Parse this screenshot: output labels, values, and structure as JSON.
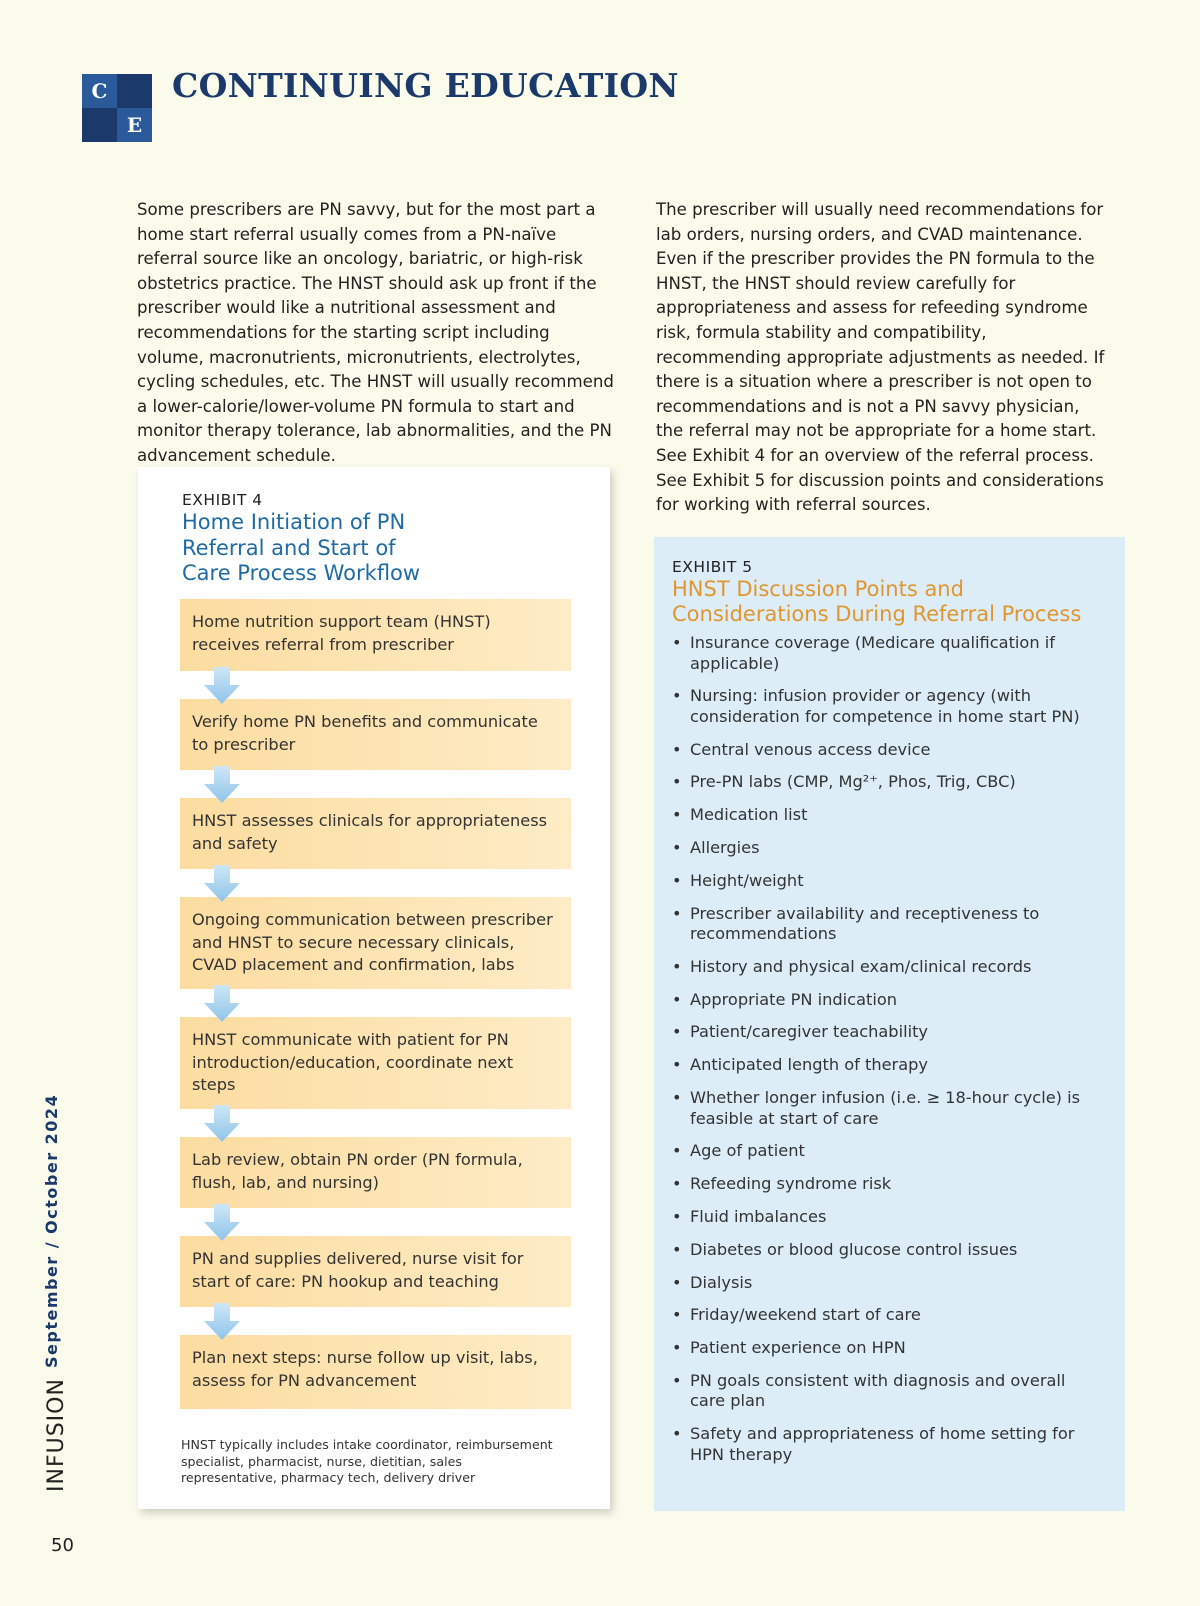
{
  "header": {
    "logo_top": "C",
    "logo_bottom": "E",
    "title": "CONTINUING EDUCATION"
  },
  "left_paragraph": "Some prescribers are PN savvy, but for the most part a home start referral usually comes from a PN-naïve referral source like an oncology, bariatric, or high-risk obstetrics practice. The HNST should ask up front if the prescriber would like a nutritional assessment and recommendations for the starting script including volume, macronutrients, micronutrients, electrolytes, cycling schedules, etc. The HNST will usually recommend a lower-calorie/lower-volume PN formula to start and monitor therapy tolerance, lab abnormalities, and the PN advancement schedule.",
  "right_paragraph": "The prescriber will usually need recommendations for lab orders, nursing orders, and CVAD maintenance. Even if the prescriber provides the PN formula to the HNST, the HNST should review carefully for appropriateness and assess for refeeding syndrome risk, formula stability and compatibility, recommending appropriate adjustments as needed. If there is a situation where a prescriber is not open to recommendations and is not a PN savvy physician, the referral may not be appropriate for a home start. See Exhibit 4 for an overview of the referral process. See Exhibit 5 for discussion points and considerations for working with referral sources.",
  "exhibit4": {
    "label": "EXHIBIT 4",
    "title": "Home Initiation of PN Referral and Start of Care Process Workflow",
    "steps": [
      "Home nutrition support team (HNST) receives  referral from prescriber",
      "Verify home PN benefits and communicate to prescriber",
      "HNST assesses clinicals for appropriateness and safety",
      "Ongoing communication between prescriber and HNST to secure necessary clinicals, CVAD placement and confirmation, labs",
      "HNST communicate with patient for PN introduction/education, coordinate next steps",
      "Lab review, obtain PN order (PN formula, flush, lab, and nursing)",
      "PN and supplies delivered, nurse visit for start of care: PN hookup and teaching",
      "Plan next steps: nurse follow up visit, labs, assess for PN advancement"
    ],
    "footnote": "HNST typically includes intake coordinator, reimbursement specialist, pharmacist, nurse, dietitian, sales representative, pharmacy tech, delivery driver"
  },
  "exhibit5": {
    "label": "EXHIBIT 5",
    "title": "HNST Discussion Points and Considerations During Referral Process",
    "items": [
      "Insurance coverage (Medicare qualification if applicable)",
      "Nursing: infusion provider or agency (with consideration for competence in home start PN)",
      "Central venous access device",
      "Pre-PN labs (CMP, Mg²⁺, Phos, Trig, CBC)",
      "Medication list",
      "Allergies",
      "Height/weight",
      "Prescriber availability and receptiveness to recommendations",
      "History and physical exam/clinical records",
      "Appropriate PN indication",
      "Patient/caregiver teachability",
      "Anticipated length of therapy",
      "Whether longer infusion (i.e. ≥ 18-hour cycle) is feasible at start of care",
      "Age of patient",
      "Refeeding syndrome risk",
      "Fluid imbalances",
      "Diabetes or blood glucose control issues",
      "Dialysis",
      "Friday/weekend start of care",
      "Patient experience on HPN",
      "PN goals consistent with diagnosis and overall care plan",
      "Safety and appropriateness of home setting for HPN therapy"
    ]
  },
  "sidebar": {
    "issue": "September / October 2024",
    "magazine": "INFUSION",
    "page_number": "50"
  }
}
